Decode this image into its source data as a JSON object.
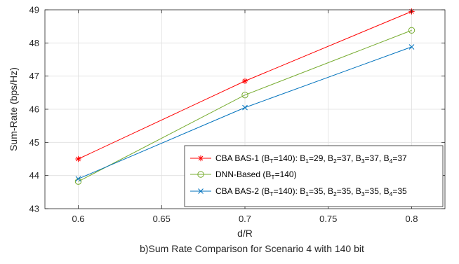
{
  "chart_data": {
    "type": "line",
    "caption": "b)Sum Rate Comparison for Scenario 4 with 140 bit",
    "xlabel": "d/R",
    "ylabel": "Sum-Rate (bps/Hz)",
    "xlim": [
      0.58,
      0.82
    ],
    "ylim": [
      43,
      49
    ],
    "xticks": [
      0.6,
      0.65,
      0.7,
      0.75,
      0.8
    ],
    "xtick_labels": [
      "0.6",
      "0.65",
      "0.7",
      "0.75",
      "0.8"
    ],
    "yticks": [
      43,
      44,
      45,
      46,
      47,
      48,
      49
    ],
    "ytick_labels": [
      "43",
      "44",
      "45",
      "46",
      "47",
      "48",
      "49"
    ],
    "grid": true,
    "legend_position": "bottom-right",
    "x": [
      0.6,
      0.7,
      0.8
    ],
    "series": [
      {
        "legend_runs": [
          {
            "t": "CBA BAS-1 (B"
          },
          {
            "t": "T",
            "sub": true
          },
          {
            "t": "=140): B"
          },
          {
            "t": "1",
            "sub": true
          },
          {
            "t": "=29, B"
          },
          {
            "t": "2",
            "sub": true
          },
          {
            "t": "=37, B"
          },
          {
            "t": "3",
            "sub": true
          },
          {
            "t": "=37, B"
          },
          {
            "t": "4",
            "sub": true
          },
          {
            "t": "=37"
          }
        ],
        "color": "#ff0000",
        "marker": "asterisk",
        "values": [
          44.5,
          46.85,
          48.95
        ]
      },
      {
        "legend_runs": [
          {
            "t": "DNN-Based (B"
          },
          {
            "t": "T",
            "sub": true
          },
          {
            "t": "=140)"
          }
        ],
        "color": "#77ac30",
        "marker": "circle",
        "values": [
          43.82,
          46.43,
          48.38
        ]
      },
      {
        "legend_runs": [
          {
            "t": "CBA BAS-2 (B"
          },
          {
            "t": "T",
            "sub": true
          },
          {
            "t": "=140): B"
          },
          {
            "t": "1",
            "sub": true
          },
          {
            "t": "=35, B"
          },
          {
            "t": "2",
            "sub": true
          },
          {
            "t": "=35, B"
          },
          {
            "t": "3",
            "sub": true
          },
          {
            "t": "=35, B"
          },
          {
            "t": "4",
            "sub": true
          },
          {
            "t": "=35"
          }
        ],
        "color": "#0072bd",
        "marker": "x",
        "values": [
          43.9,
          46.05,
          47.88
        ]
      }
    ]
  }
}
